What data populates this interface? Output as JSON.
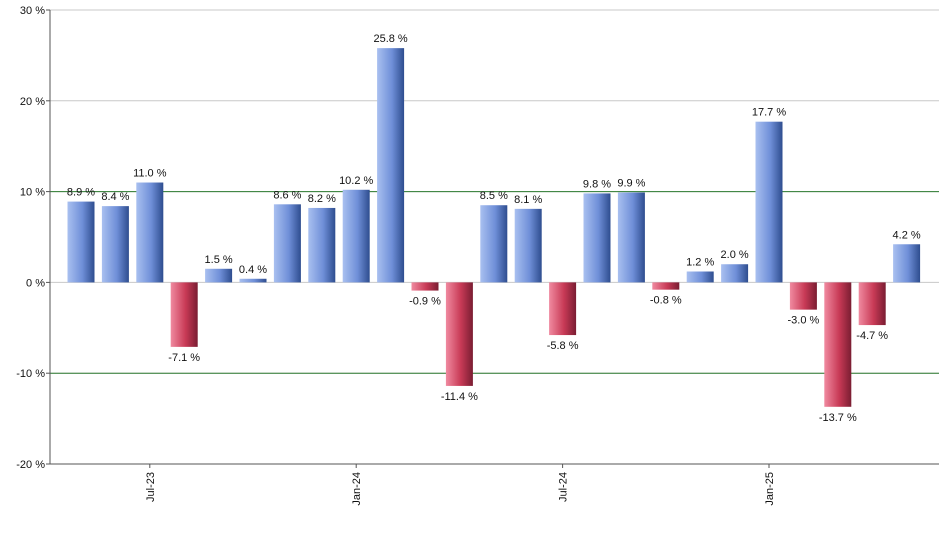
{
  "chart_data": {
    "type": "bar",
    "title": "",
    "xlabel": "",
    "ylabel": "",
    "ylim": [
      -20,
      30
    ],
    "y_ticks": [
      -20,
      -10,
      0,
      10,
      20,
      30
    ],
    "y_tick_labels": [
      "-20 %",
      "-10 %",
      "0 %",
      "10 %",
      "20 %",
      "30 %"
    ],
    "x_tick_labels": [
      {
        "label": "Jul-23",
        "at_index": 2
      },
      {
        "label": "Jan-24",
        "at_index": 8
      },
      {
        "label": "Jul-24",
        "at_index": 14
      },
      {
        "label": "Jan-25",
        "at_index": 20
      }
    ],
    "values": [
      8.9,
      8.4,
      11.0,
      -7.1,
      1.5,
      0.4,
      8.6,
      8.2,
      10.2,
      25.8,
      -0.9,
      -11.4,
      8.5,
      8.1,
      -5.8,
      9.8,
      9.9,
      -0.8,
      1.2,
      2.0,
      17.7,
      -3.0,
      -13.7,
      -4.7,
      4.2
    ],
    "value_labels": [
      "8.9 %",
      "8.4 %",
      "11.0 %",
      "-7.1 %",
      "1.5 %",
      "0.4 %",
      "8.6 %",
      "8.2 %",
      "10.2 %",
      "25.8 %",
      "-0.9 %",
      "-11.4 %",
      "8.5 %",
      "8.1 %",
      "-5.8 %",
      "9.8 %",
      "9.9 %",
      "-0.8 %",
      "1.2 %",
      "2.0 %",
      "17.7 %",
      "-3.0 %",
      "-13.7 %",
      "-4.7 %",
      "4.2 %"
    ],
    "colors": {
      "positive": "#6f8fd8",
      "negative": "#c83a56",
      "grid": "#c8c8c8",
      "reference_line": "#2e7d32",
      "axis": "#555555"
    },
    "reference_lines": [
      10,
      -10
    ],
    "grid": true,
    "legend": "none"
  }
}
